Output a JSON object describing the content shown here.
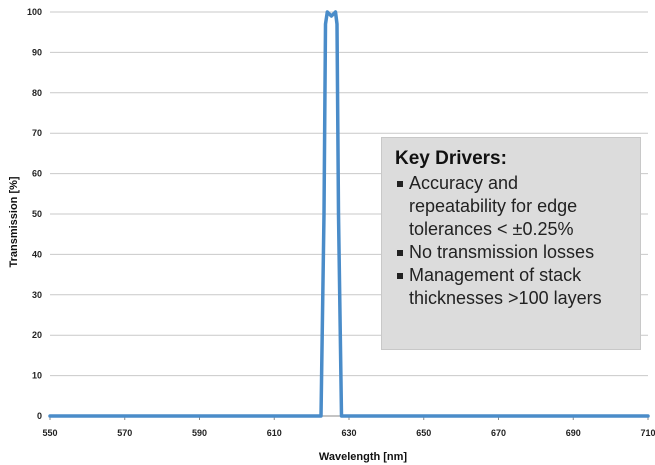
{
  "chart_data": {
    "type": "line",
    "title": "",
    "xlabel": "Wavelength [nm]",
    "ylabel": "Transmission [%]",
    "xlim": [
      550,
      710
    ],
    "ylim": [
      0,
      100
    ],
    "xticks": [
      550,
      570,
      590,
      610,
      630,
      650,
      670,
      690,
      710
    ],
    "yticks": [
      0,
      10,
      20,
      30,
      40,
      50,
      60,
      70,
      80,
      90,
      100
    ],
    "grid": "horizontal",
    "series": [
      {
        "color": "#4a8cc9",
        "x": [
          550,
          620,
          622.5,
          623.3,
          623.7,
          624.2,
          625.3,
          626.4,
          626.8,
          627.2,
          628,
          630.5,
          710
        ],
        "y": [
          0,
          0,
          0,
          50,
          97,
          100,
          99,
          100,
          97,
          50,
          0,
          0,
          0
        ]
      }
    ]
  },
  "callout": {
    "title": "Key Drivers:",
    "bullets": [
      [
        "Accuracy and",
        "repeatability for edge",
        "tolerances < ±0.25%"
      ],
      [
        "No transmission losses"
      ],
      [
        "Management of stack",
        "thicknesses >100 layers"
      ]
    ]
  },
  "colors": {
    "line": "#4a8cc9",
    "grid": "#c9c9c9",
    "callout_bg": "#dcdcdc"
  }
}
